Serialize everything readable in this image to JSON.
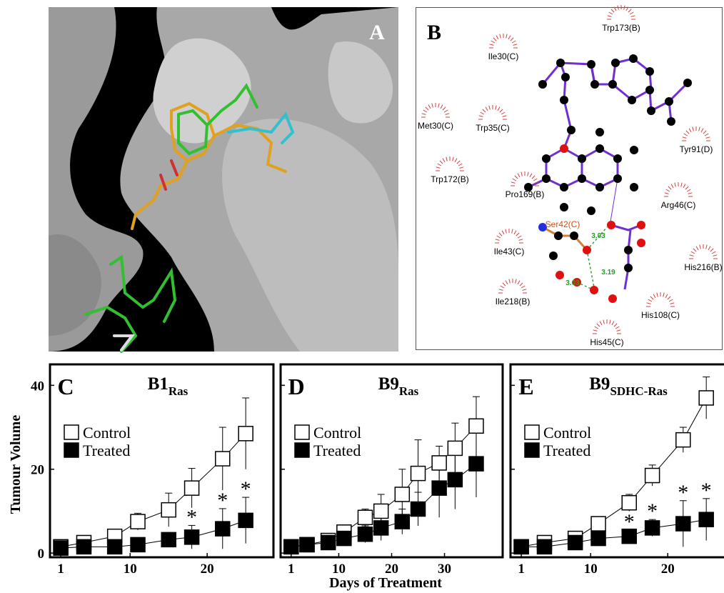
{
  "panels": {
    "a": "A",
    "b": "B"
  },
  "diagram": {
    "residues": [
      "Trp173(B)",
      "Ile30(C)",
      "Met30(C)",
      "Trp35(C)",
      "Tyr91(D)",
      "Trp172(B)",
      "Pro169(B)",
      "Arg46(C)",
      "Ile43(C)",
      "His216(B)",
      "Ile218(B)",
      "His108(C)",
      "His45(C)"
    ],
    "ligand_residue": "Ser42(C)",
    "hbonds": [
      3.03,
      3.19,
      3.03
    ]
  },
  "y_axis_label": "Tumour Volume",
  "x_axis_label": "Days of Treatment",
  "chart_data": [
    {
      "type": "line",
      "panel": "C",
      "title": "B1",
      "title_subscript": "Ras",
      "x": [
        1,
        4,
        8,
        11,
        15,
        18,
        22,
        25
      ],
      "series": [
        {
          "name": "Control",
          "color": "#ffffff",
          "values": [
            1.5,
            2.5,
            4,
            7.5,
            10.3,
            15.5,
            22.5,
            28.5
          ],
          "errors": [
            0.3,
            1,
            0.8,
            2,
            4,
            4.7,
            7.5,
            8.5
          ]
        },
        {
          "name": "Treated",
          "color": "#000000",
          "values": [
            1.2,
            1.5,
            1.5,
            2,
            3.2,
            3.8,
            5.8,
            7.8
          ],
          "errors": [
            0.5,
            0.5,
            0.5,
            0.5,
            1.5,
            2.8,
            4.8,
            5.5
          ]
        }
      ],
      "annotations": [
        {
          "text": "*",
          "x": 18
        },
        {
          "text": "*",
          "x": 22
        },
        {
          "text": "*",
          "x": 25
        }
      ],
      "xlim": [
        -0.4,
        28.6
      ],
      "xticks": [
        1,
        10,
        20
      ],
      "ylim": [
        -1,
        45
      ],
      "yticks": [
        0,
        20,
        40
      ],
      "ytick_labels": true
    },
    {
      "type": "line",
      "panel": "D",
      "title": "B9",
      "title_subscript": "Ras",
      "x": [
        1,
        4,
        8,
        11,
        15,
        18,
        22,
        25,
        29,
        32,
        36
      ],
      "series": [
        {
          "name": "Control",
          "color": "#ffffff",
          "values": [
            1.5,
            2,
            3,
            5,
            8.5,
            10,
            14,
            19,
            21.5,
            25,
            30.3
          ],
          "errors": [
            0.3,
            0.5,
            1,
            1,
            2,
            4,
            6,
            8,
            4,
            6,
            7
          ]
        },
        {
          "name": "Treated",
          "color": "#000000",
          "values": [
            1.5,
            2,
            2.5,
            3.5,
            4.5,
            6,
            7.5,
            10.5,
            15.5,
            17.5,
            21.3
          ],
          "errors": [
            0.5,
            0.5,
            1,
            1.5,
            2,
            3,
            3,
            4,
            7,
            7,
            8
          ]
        }
      ],
      "annotations": [],
      "xlim": [
        -1,
        41
      ],
      "xticks": [
        1,
        10,
        20,
        30
      ],
      "ylim": [
        -1,
        45
      ],
      "yticks": [
        0,
        20,
        40
      ],
      "ytick_labels": false
    },
    {
      "type": "line",
      "panel": "E",
      "title": "B9",
      "title_subscript": "SDHC-Ras",
      "x": [
        1,
        4,
        8,
        11,
        15,
        18,
        22,
        25
      ],
      "series": [
        {
          "name": "Control",
          "color": "#ffffff",
          "values": [
            1.5,
            2.5,
            3.5,
            7,
            12,
            18.5,
            27,
            37
          ],
          "errors": [
            0.3,
            1.5,
            1,
            1,
            2,
            2.5,
            3,
            5
          ]
        },
        {
          "name": "Treated",
          "color": "#000000",
          "values": [
            1.5,
            1.5,
            2.5,
            3.5,
            4,
            6,
            7,
            8
          ],
          "errors": [
            0.5,
            0.5,
            0.5,
            0.5,
            1.5,
            2,
            5.5,
            5
          ]
        }
      ],
      "annotations": [
        {
          "text": "*",
          "x": 15
        },
        {
          "text": "*",
          "x": 18
        },
        {
          "text": "*",
          "x": 22
        },
        {
          "text": "*",
          "x": 25
        }
      ],
      "xlim": [
        -0.4,
        27.3
      ],
      "xticks": [
        1,
        10,
        20
      ],
      "ylim": [
        -1,
        45
      ],
      "yticks": [
        0,
        20,
        40
      ],
      "ytick_labels": false
    }
  ]
}
